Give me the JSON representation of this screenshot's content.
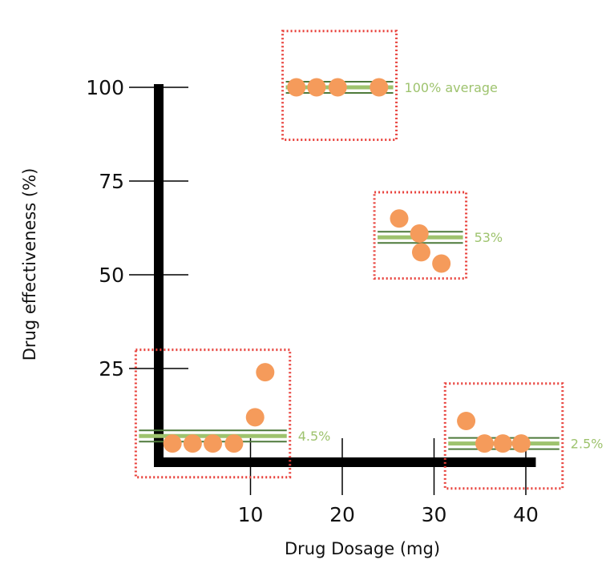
{
  "chart_data": {
    "type": "scatter",
    "title": "",
    "xlabel": "Drug Dosage (mg)",
    "ylabel": "Drug effectiveness (%)",
    "x_ticks": [
      "10",
      "20",
      "30",
      "40"
    ],
    "y_ticks": [
      "25",
      "50",
      "75",
      "100"
    ],
    "xlim": [
      0,
      41
    ],
    "ylim": [
      0,
      100
    ],
    "grid": false,
    "points": [
      {
        "x": 1.5,
        "y": 5
      },
      {
        "x": 3.7,
        "y": 5
      },
      {
        "x": 5.9,
        "y": 5
      },
      {
        "x": 8.2,
        "y": 5
      },
      {
        "x": 10.5,
        "y": 12
      },
      {
        "x": 11.6,
        "y": 24
      },
      {
        "x": 15,
        "y": 100
      },
      {
        "x": 17.2,
        "y": 100
      },
      {
        "x": 19.5,
        "y": 100
      },
      {
        "x": 24,
        "y": 100
      },
      {
        "x": 26.2,
        "y": 65
      },
      {
        "x": 28.4,
        "y": 61
      },
      {
        "x": 28.6,
        "y": 56
      },
      {
        "x": 30.8,
        "y": 53
      },
      {
        "x": 33.5,
        "y": 11
      },
      {
        "x": 35.5,
        "y": 5
      },
      {
        "x": 37.5,
        "y": 5
      },
      {
        "x": 39.5,
        "y": 5
      }
    ],
    "groups": [
      {
        "label": "4.5%",
        "average": 7,
        "x_range": [
          -2.5,
          14.3
        ],
        "y_range": [
          -4,
          30
        ]
      },
      {
        "label": "100% average",
        "average": 100,
        "x_range": [
          13.5,
          25.9
        ],
        "y_range": [
          86,
          115
        ]
      },
      {
        "label": "53%",
        "average": 60,
        "x_range": [
          23.5,
          33.5
        ],
        "y_range": [
          49,
          72
        ]
      },
      {
        "label": "2.5%",
        "average": 5,
        "x_range": [
          31.2,
          44
        ],
        "y_range": [
          -7,
          21
        ]
      }
    ]
  },
  "colors": {
    "point": "#f59b5b",
    "average_fill": "#9ec36e",
    "average_edge": "#4e7a3b",
    "group_label": "#9ec36e",
    "box": "#e8413b",
    "axis": "#000000"
  }
}
